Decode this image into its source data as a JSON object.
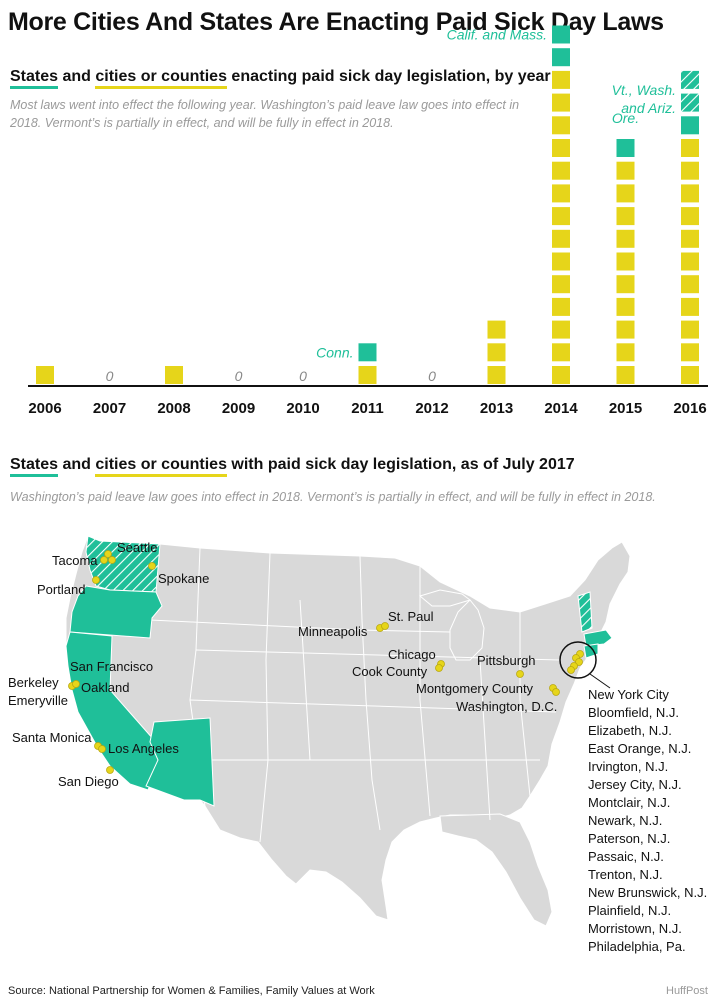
{
  "title": "More Cities And States Are Enacting Paid Sick Day Laws",
  "colors": {
    "state": "#1fbf99",
    "city": "#e6d51a",
    "map_base": "#d9d9d9",
    "zero": "#888888"
  },
  "section1": {
    "heading_states": "States",
    "heading_and": " and ",
    "heading_cities": "cities or counties",
    "heading_rest": " enacting paid sick day legislation, by year",
    "note": "Most laws went into effect the following year. Washington’s paid leave law goes into effect in 2018. Vermont’s is partially in effect, and will be fully in effect in 2018."
  },
  "chart_data": {
    "type": "bar",
    "categories": [
      "2006",
      "2007",
      "2008",
      "2009",
      "2010",
      "2011",
      "2012",
      "2013",
      "2014",
      "2015",
      "2016"
    ],
    "series": [
      {
        "name": "cities or counties",
        "values": [
          1,
          0,
          1,
          0,
          0,
          1,
          0,
          3,
          14,
          10,
          11
        ]
      },
      {
        "name": "States",
        "values": [
          0,
          0,
          0,
          0,
          0,
          1,
          0,
          0,
          2,
          1,
          3
        ]
      }
    ],
    "states_note": "3 states in 2016: 1 solid, 2 hatched (Vt., Wash. partially/later in effect)",
    "hatched_states": [
      0,
      0,
      0,
      0,
      0,
      0,
      0,
      0,
      0,
      0,
      2
    ],
    "zero_label": "0",
    "annotations": [
      {
        "year": "2011",
        "text": "Conn."
      },
      {
        "year": "2014",
        "text": "Calif. and Mass."
      },
      {
        "year": "2015",
        "text": "Ore."
      },
      {
        "year": "2016",
        "line1": "Vt., Wash.",
        "line2": "and Ariz."
      }
    ]
  },
  "section2": {
    "heading_states": "States",
    "heading_and": " and ",
    "heading_cities": "cities or counties",
    "heading_rest": " with paid sick day legislation, as of July 2017",
    "note": "Washington’s paid leave law goes into effect in 2018. Vermont’s is partially in effect, and will be fully in effect in 2018."
  },
  "map": {
    "labels": {
      "seattle": "Seattle",
      "tacoma": "Tacoma",
      "spokane": "Spokane",
      "portland": "Portland",
      "st_paul": "St. Paul",
      "minneapolis": "Minneapolis",
      "chicago": "Chicago",
      "cook_county": "Cook County",
      "pittsburgh": "Pittsburgh",
      "montgomery": "Montgomery County",
      "washington_dc": "Washington, D.C.",
      "san_francisco": "San Francisco",
      "berkeley": "Berkeley",
      "oakland": "Oakland",
      "emeryville": "Emeryville",
      "santa_monica": "Santa Monica",
      "los_angeles": "Los Angeles",
      "san_diego": "San Diego"
    },
    "ny_list": [
      "New York City",
      "Bloomfield, N.J.",
      "Elizabeth, N.J.",
      "East Orange, N.J.",
      "Irvington, N.J.",
      "Jersey City, N.J.",
      "Montclair, N.J.",
      "Newark, N.J.",
      "Paterson, N.J.",
      "Passaic, N.J.",
      "Trenton, N.J.",
      "New Brunswick, N.J.",
      "Plainfield, N.J.",
      "Morristown, N.J.",
      "Philadelphia, Pa."
    ]
  },
  "source": "Source: National Partnership for Women & Families, Family Values at Work",
  "brand": "HuffPost"
}
